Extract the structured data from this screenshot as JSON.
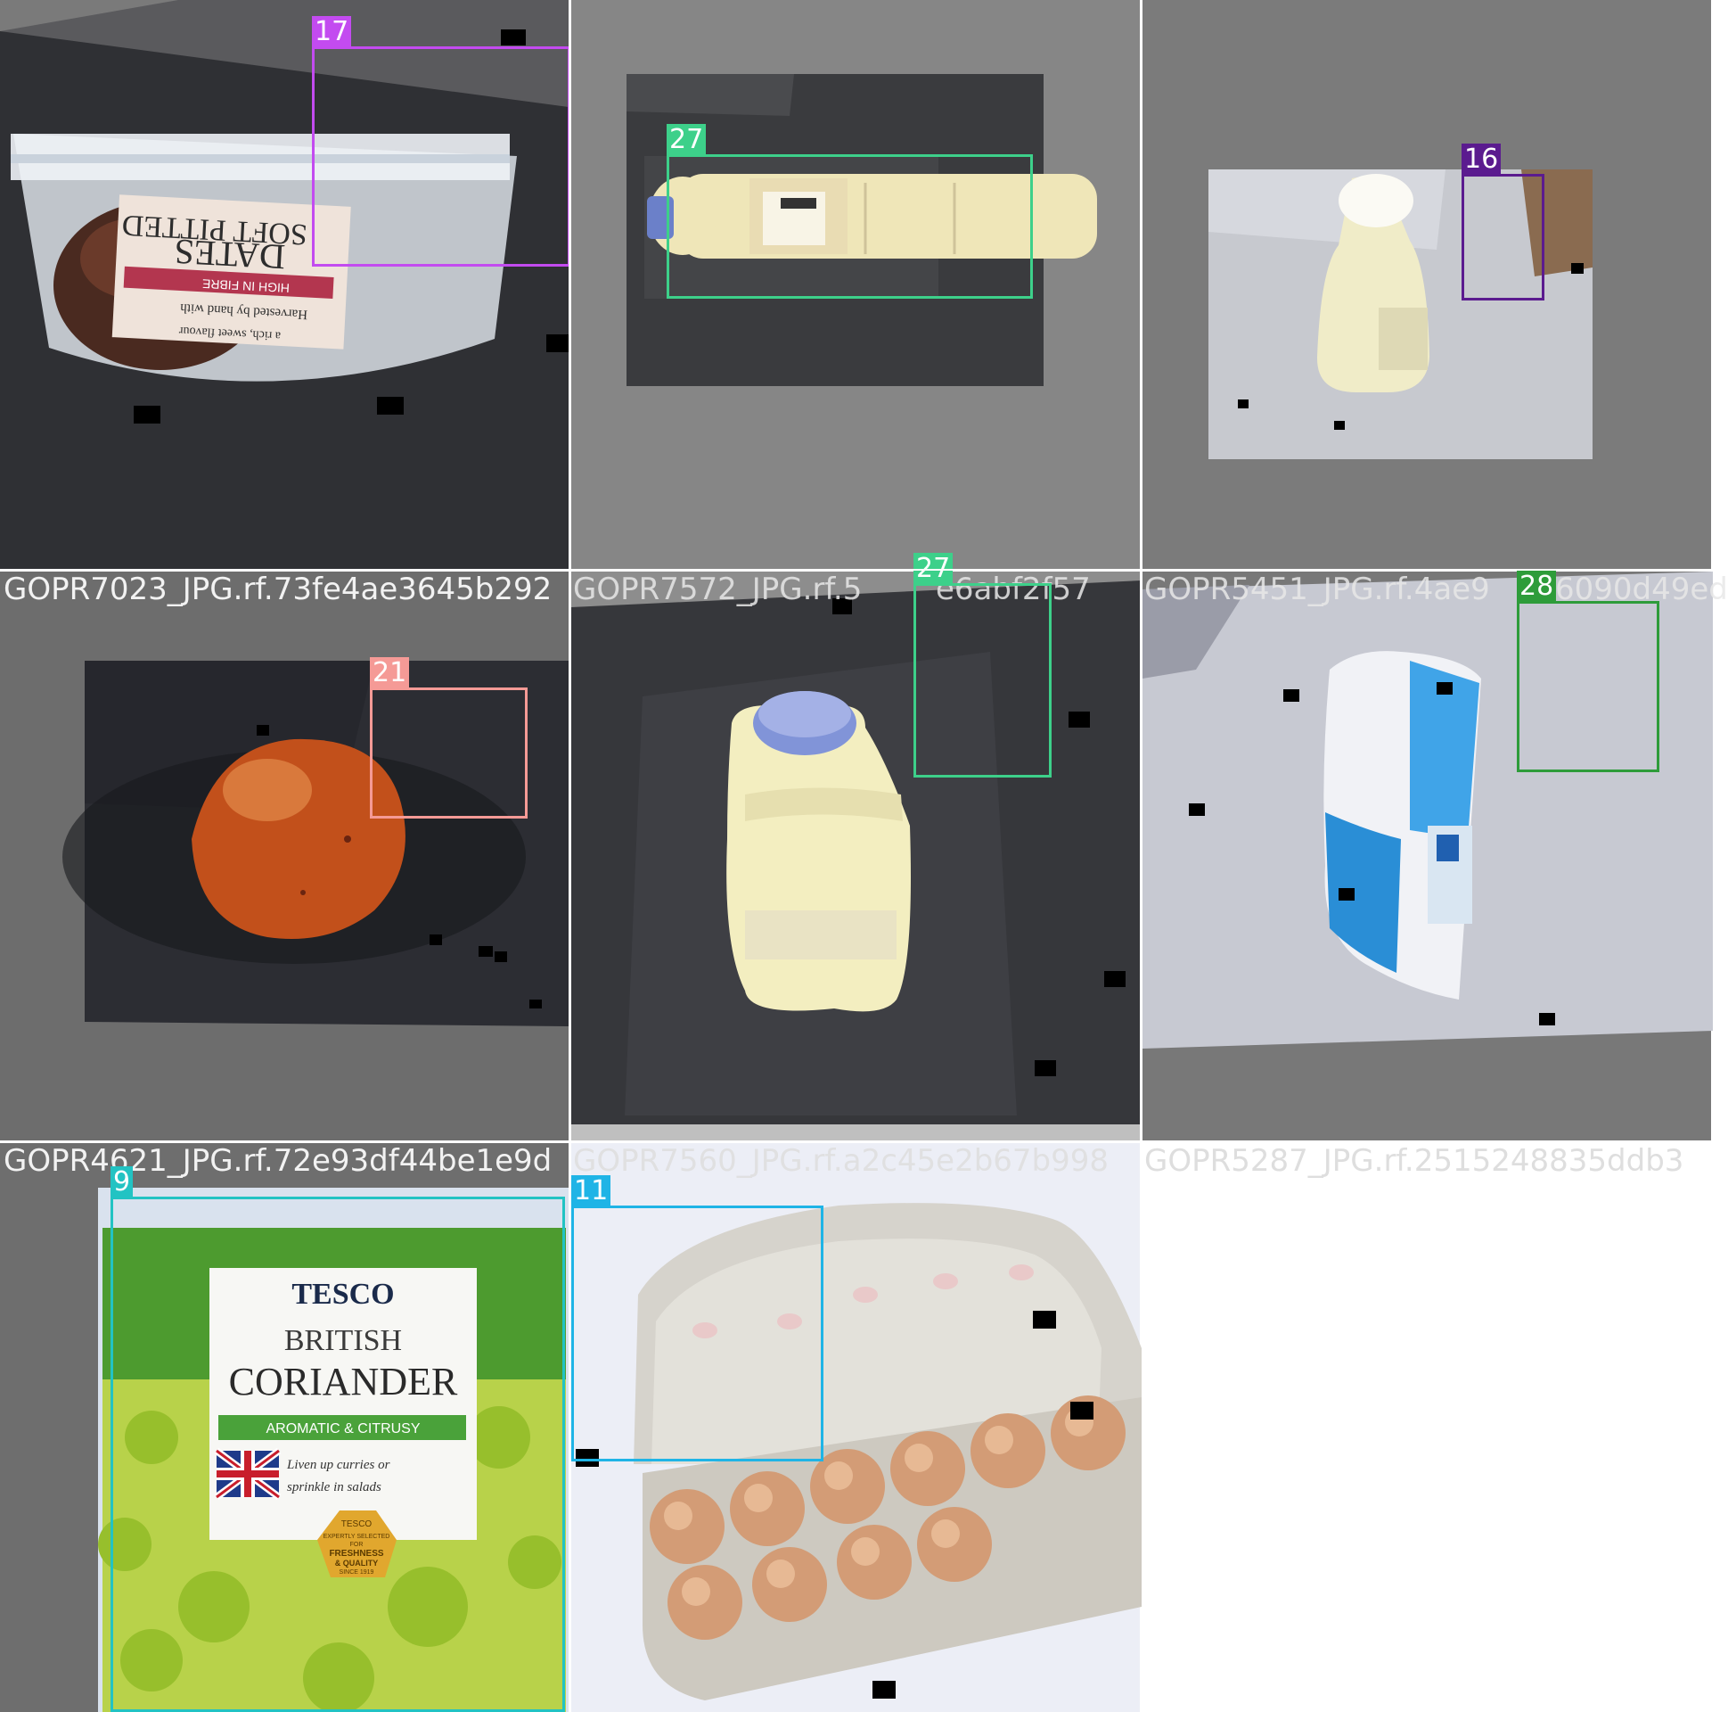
{
  "tiles": [
    {
      "filename": "",
      "box": {
        "label": "17",
        "color": "#c34bf0"
      },
      "photo": "dates-bag",
      "package_text": [
        "SOFT PITTED",
        "DATES",
        "HIGH IN FIBRE",
        "Harvested by hand with",
        "a rich, sweet flavour"
      ]
    },
    {
      "filename": "",
      "box": {
        "label": "27",
        "color": "#3dd08a"
      },
      "photo": "oil-bottle-horizontal"
    },
    {
      "filename": "",
      "box": {
        "label": "16",
        "color": "#5b1b8f"
      },
      "photo": "mayonnaise-bottle"
    },
    {
      "filename": "GOPR7023_JPG.rf.73fe4ae3645b292",
      "box": {
        "label": "21",
        "color": "#f59a96"
      },
      "photo": "potato"
    },
    {
      "filename": "",
      "box": {
        "label": "27",
        "color": "#3dd08a"
      },
      "photo": "oil-bottle-vertical"
    },
    {
      "filename": "",
      "box": {
        "label": "28",
        "color": "#2e9c3a"
      },
      "photo": "flour-bag"
    },
    {
      "filename": "GOPR4621_JPG.rf.72e93df44be1e9d",
      "box": {
        "label": "9",
        "color": "#22c3c3"
      },
      "photo": "coriander-bag",
      "package_text": [
        "TESCO",
        "BRITISH",
        "CORIANDER",
        "AROMATIC & CITRUSY",
        "Liven up curries or",
        "sprinkle in salads",
        "TESCO",
        "EXPERTLY SELECTED",
        "FOR",
        "FRESHNESS",
        "& QUALITY",
        "SINCE 1919"
      ]
    },
    {
      "filename": "",
      "box": {
        "label": "11",
        "color": "#1fb4e6"
      },
      "photo": "egg-carton"
    }
  ],
  "overlapped_filenames": [
    "GOPR7572_JPG.rf.5",
    "e6abf2f57",
    "GOPR5451_JPG.rf.4ae9",
    "6090d49ed",
    "GOPR7560_JPG.rf.a2c45e2b67b998",
    "GOPR5287_JPG.rf.2515248835ddb3"
  ]
}
